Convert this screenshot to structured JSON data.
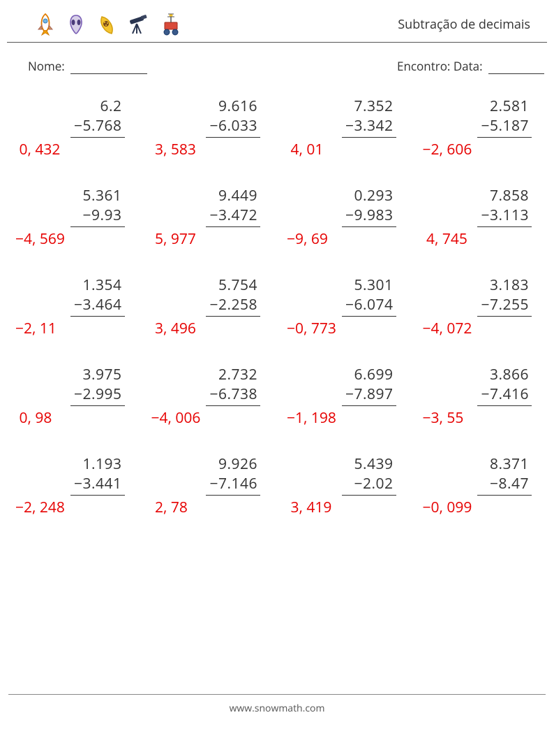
{
  "title": "Subtração de decimais",
  "name_label": "Nome:",
  "date_label": "Encontro: Data:",
  "footer": "www.snowmath.com",
  "icons": [
    "rocket",
    "alien",
    "seed",
    "telescope",
    "rover"
  ],
  "answer_color": "#e60000",
  "text_color": "#333333",
  "problems": [
    {
      "a": "6.2",
      "b": "−5.768",
      "ans": " 0, 432"
    },
    {
      "a": "9.616",
      "b": "−6.033",
      "ans": " 3, 583"
    },
    {
      "a": "7.352",
      "b": "−3.342",
      "ans": " 4, 01"
    },
    {
      "a": "2.581",
      "b": "−5.187",
      "ans": "−2, 606"
    },
    {
      "a": "5.361",
      "b": "−9.93",
      "ans": "−4, 569"
    },
    {
      "a": "9.449",
      "b": "−3.472",
      "ans": " 5, 977"
    },
    {
      "a": "0.293",
      "b": "−9.983",
      "ans": "−9, 69"
    },
    {
      "a": "7.858",
      "b": "−3.113",
      "ans": " 4, 745"
    },
    {
      "a": "1.354",
      "b": "−3.464",
      "ans": "−2, 11"
    },
    {
      "a": "5.754",
      "b": "−2.258",
      "ans": " 3, 496"
    },
    {
      "a": "5.301",
      "b": "−6.074",
      "ans": "−0, 773"
    },
    {
      "a": "3.183",
      "b": "−7.255",
      "ans": "−4, 072"
    },
    {
      "a": "3.975",
      "b": "−2.995",
      "ans": " 0, 98"
    },
    {
      "a": "2.732",
      "b": "−6.738",
      "ans": "−4, 006"
    },
    {
      "a": "6.699",
      "b": "−7.897",
      "ans": "−1, 198"
    },
    {
      "a": "3.866",
      "b": "−7.416",
      "ans": "−3, 55"
    },
    {
      "a": "1.193",
      "b": "−3.441",
      "ans": "−2, 248"
    },
    {
      "a": "9.926",
      "b": "−7.146",
      "ans": " 2, 78"
    },
    {
      "a": "5.439",
      "b": "−2.02",
      "ans": " 3, 419"
    },
    {
      "a": "8.371",
      "b": "−8.47",
      "ans": "−0, 099"
    }
  ]
}
